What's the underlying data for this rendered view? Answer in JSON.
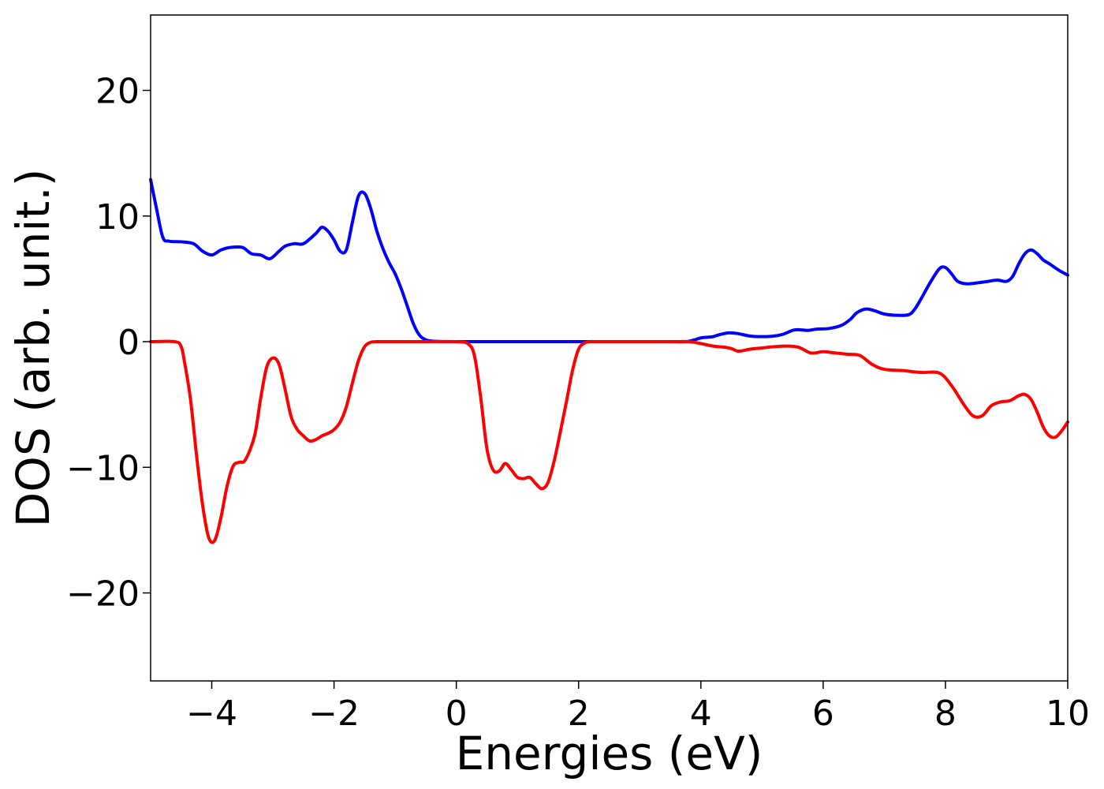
{
  "chart_data": {
    "type": "line",
    "title": "",
    "xlabel": "Energies (eV)",
    "ylabel": "DOS (arb. unit.)",
    "xlim": [
      -5,
      10
    ],
    "ylim": [
      -27,
      26
    ],
    "x_ticks": [
      -4,
      -2,
      0,
      2,
      4,
      6,
      8,
      10
    ],
    "x_tick_labels": [
      "−4",
      "−2",
      "0",
      "2",
      "4",
      "6",
      "8",
      "10"
    ],
    "y_ticks": [
      -20,
      -10,
      0,
      10,
      20
    ],
    "y_tick_labels": [
      "−20",
      "−10",
      "0",
      "10",
      "20"
    ],
    "grid": false,
    "legend": "none",
    "series": [
      {
        "color": "#0000ff",
        "x": [
          -5.0,
          -4.9,
          -4.8,
          -4.7,
          -4.5,
          -4.3,
          -4.15,
          -4.0,
          -3.85,
          -3.7,
          -3.5,
          -3.35,
          -3.2,
          -3.05,
          -2.9,
          -2.8,
          -2.65,
          -2.5,
          -2.3,
          -2.2,
          -2.1,
          -2.0,
          -1.9,
          -1.8,
          -1.7,
          -1.6,
          -1.5,
          -1.4,
          -1.3,
          -1.2,
          -1.1,
          -1.0,
          -0.9,
          -0.8,
          -0.7,
          -0.6,
          -0.5,
          -0.4,
          -0.3,
          -0.2,
          -0.1,
          0.0,
          0.5,
          1.0,
          2.0,
          3.0,
          3.5,
          3.75,
          3.9,
          4.0,
          4.1,
          4.2,
          4.3,
          4.45,
          4.6,
          4.8,
          5.0,
          5.2,
          5.35,
          5.5,
          5.6,
          5.75,
          5.9,
          6.1,
          6.3,
          6.45,
          6.55,
          6.7,
          6.85,
          7.0,
          7.2,
          7.4,
          7.5,
          7.6,
          7.75,
          7.9,
          8.0,
          8.1,
          8.2,
          8.35,
          8.55,
          8.7,
          8.85,
          9.0,
          9.1,
          9.2,
          9.3,
          9.4,
          9.5,
          9.6,
          9.7,
          9.85,
          10.0
        ],
        "values": [
          12.9,
          10.5,
          8.3,
          8.0,
          7.95,
          7.8,
          7.2,
          6.9,
          7.3,
          7.5,
          7.5,
          7.0,
          6.9,
          6.6,
          7.2,
          7.6,
          7.8,
          7.8,
          8.6,
          9.1,
          8.8,
          8.1,
          7.2,
          7.3,
          9.5,
          11.6,
          11.8,
          10.6,
          8.8,
          7.4,
          6.3,
          5.4,
          4.2,
          2.8,
          1.4,
          0.5,
          0.15,
          0.05,
          0.02,
          0.0,
          0.0,
          0.0,
          0.0,
          0.0,
          0.0,
          0.0,
          0.0,
          0.0,
          0.15,
          0.3,
          0.35,
          0.4,
          0.55,
          0.7,
          0.65,
          0.45,
          0.4,
          0.45,
          0.6,
          0.9,
          0.95,
          0.9,
          1.0,
          1.05,
          1.3,
          1.8,
          2.3,
          2.6,
          2.45,
          2.2,
          2.1,
          2.15,
          2.6,
          3.4,
          4.7,
          5.8,
          5.9,
          5.4,
          4.8,
          4.6,
          4.7,
          4.8,
          4.9,
          4.8,
          5.2,
          6.2,
          7.0,
          7.3,
          7.0,
          6.5,
          6.2,
          5.7,
          5.3
        ]
      },
      {
        "color": "#ff0000",
        "x": [
          -5.0,
          -4.6,
          -4.5,
          -4.45,
          -4.35,
          -4.25,
          -4.15,
          -4.05,
          -3.95,
          -3.85,
          -3.75,
          -3.65,
          -3.55,
          -3.45,
          -3.3,
          -3.2,
          -3.1,
          -3.0,
          -2.9,
          -2.8,
          -2.7,
          -2.6,
          -2.5,
          -2.4,
          -2.3,
          -2.2,
          -2.1,
          -2.0,
          -1.9,
          -1.8,
          -1.7,
          -1.6,
          -1.5,
          -1.4,
          -1.3,
          -1.2,
          -1.1,
          -1.0,
          -0.9,
          -0.8,
          -0.5,
          0.0,
          0.2,
          0.3,
          0.4,
          0.5,
          0.6,
          0.7,
          0.8,
          0.9,
          1.0,
          1.1,
          1.2,
          1.3,
          1.4,
          1.5,
          1.6,
          1.7,
          1.8,
          1.9,
          2.0,
          2.1,
          2.2,
          2.3,
          2.4,
          2.5,
          3.0,
          3.5,
          3.8,
          4.0,
          4.2,
          4.4,
          4.5,
          4.6,
          4.7,
          4.8,
          5.0,
          5.2,
          5.4,
          5.6,
          5.8,
          6.0,
          6.2,
          6.4,
          6.6,
          6.8,
          7.0,
          7.3,
          7.6,
          7.9,
          8.1,
          8.3,
          8.45,
          8.6,
          8.75,
          8.9,
          9.05,
          9.2,
          9.3,
          9.4,
          9.5,
          9.6,
          9.7,
          9.8,
          9.9,
          10.0
        ],
        "values": [
          0.0,
          0.0,
          -0.4,
          -1.5,
          -4.5,
          -9.0,
          -13.0,
          -15.6,
          -15.8,
          -14.0,
          -11.5,
          -9.9,
          -9.6,
          -9.4,
          -7.5,
          -4.5,
          -2.0,
          -1.3,
          -1.8,
          -3.8,
          -6.0,
          -7.0,
          -7.5,
          -7.9,
          -7.8,
          -7.5,
          -7.3,
          -7.0,
          -6.4,
          -5.2,
          -3.3,
          -1.5,
          -0.4,
          -0.05,
          0.0,
          0.0,
          0.0,
          0.0,
          0.0,
          0.0,
          0.0,
          0.0,
          -0.2,
          -1.2,
          -4.5,
          -8.5,
          -10.2,
          -10.3,
          -9.7,
          -10.2,
          -10.8,
          -10.9,
          -10.8,
          -11.3,
          -11.7,
          -11.2,
          -9.5,
          -7.2,
          -4.8,
          -2.3,
          -0.6,
          -0.1,
          0.0,
          0.0,
          0.0,
          0.0,
          0.0,
          0.0,
          0.0,
          -0.15,
          -0.35,
          -0.45,
          -0.55,
          -0.75,
          -0.7,
          -0.6,
          -0.5,
          -0.4,
          -0.35,
          -0.45,
          -0.9,
          -0.8,
          -0.9,
          -1.0,
          -1.1,
          -1.8,
          -2.2,
          -2.3,
          -2.45,
          -2.5,
          -3.5,
          -5.0,
          -5.9,
          -5.9,
          -5.1,
          -4.8,
          -4.7,
          -4.3,
          -4.2,
          -4.6,
          -5.6,
          -6.8,
          -7.5,
          -7.6,
          -7.1,
          -6.4
        ]
      }
    ]
  }
}
